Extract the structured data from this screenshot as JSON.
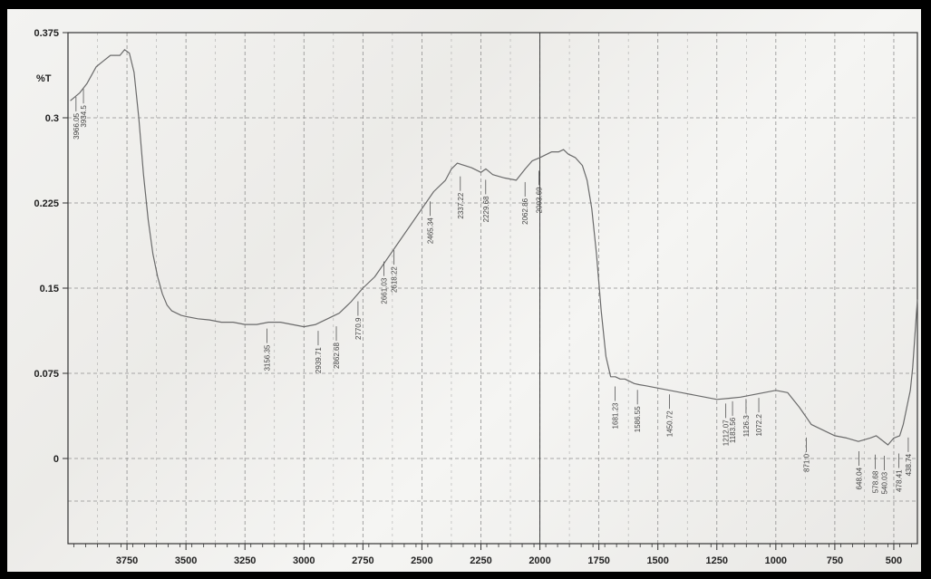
{
  "chart_data": {
    "type": "line",
    "title": "",
    "ylabel": "%T",
    "xlabel": "",
    "xlim": [
      4000,
      400
    ],
    "ylim": [
      -0.075,
      0.375
    ],
    "x_ticks": [
      3750,
      3500,
      3250,
      3000,
      2750,
      2500,
      2250,
      2000,
      1750,
      1500,
      1250,
      1000,
      750,
      500
    ],
    "y_ticks": [
      "0.375",
      "0.3",
      "0.225",
      "0.15",
      "0.075",
      "0"
    ],
    "y_tick_values": [
      0.375,
      0.3,
      0.225,
      0.15,
      0.075,
      0
    ],
    "grid": true,
    "series": [
      {
        "x": [
          3990,
          3950,
          3920,
          3880,
          3850,
          3820,
          3800,
          3780,
          3760,
          3740,
          3720,
          3700,
          3680,
          3660,
          3640,
          3620,
          3600,
          3580,
          3560,
          3540,
          3520,
          3500,
          3450,
          3400,
          3350,
          3300,
          3250,
          3200,
          3150,
          3100,
          3050,
          3000,
          2950,
          2900,
          2850,
          2800,
          2750,
          2700,
          2650,
          2600,
          2550,
          2500,
          2450,
          2400,
          2375,
          2350,
          2320,
          2290,
          2250,
          2229,
          2200,
          2150,
          2100,
          2062,
          2033,
          2000,
          1950,
          1920,
          1900,
          1880,
          1850,
          1820,
          1800,
          1780,
          1760,
          1740,
          1720,
          1700,
          1680,
          1660,
          1640,
          1620,
          1600,
          1580,
          1550,
          1500,
          1450,
          1400,
          1350,
          1300,
          1250,
          1200,
          1150,
          1100,
          1050,
          1000,
          950,
          900,
          850,
          800,
          750,
          700,
          650,
          600,
          575,
          550,
          525,
          500,
          475,
          460,
          450,
          440,
          430,
          420,
          410,
          400
        ],
        "y": [
          0.315,
          0.322,
          0.33,
          0.345,
          0.35,
          0.355,
          0.355,
          0.355,
          0.36,
          0.357,
          0.34,
          0.3,
          0.25,
          0.21,
          0.18,
          0.16,
          0.145,
          0.135,
          0.13,
          0.128,
          0.126,
          0.125,
          0.123,
          0.122,
          0.12,
          0.12,
          0.118,
          0.118,
          0.12,
          0.12,
          0.118,
          0.116,
          0.118,
          0.123,
          0.128,
          0.138,
          0.15,
          0.16,
          0.175,
          0.19,
          0.205,
          0.22,
          0.235,
          0.245,
          0.255,
          0.26,
          0.258,
          0.256,
          0.252,
          0.255,
          0.25,
          0.247,
          0.245,
          0.255,
          0.262,
          0.265,
          0.27,
          0.27,
          0.272,
          0.268,
          0.265,
          0.258,
          0.245,
          0.22,
          0.18,
          0.13,
          0.09,
          0.072,
          0.072,
          0.07,
          0.07,
          0.068,
          0.066,
          0.065,
          0.064,
          0.062,
          0.06,
          0.058,
          0.056,
          0.054,
          0.052,
          0.053,
          0.054,
          0.056,
          0.058,
          0.06,
          0.058,
          0.045,
          0.03,
          0.025,
          0.02,
          0.018,
          0.015,
          0.018,
          0.02,
          0.016,
          0.012,
          0.018,
          0.02,
          0.03,
          0.04,
          0.05,
          0.06,
          0.08,
          0.11,
          0.14
        ]
      }
    ],
    "peak_labels": [
      {
        "x": 3966.05,
        "y": 0.32,
        "text": "3966.05"
      },
      {
        "x": 3934.5,
        "y": 0.327,
        "text": "3934.5"
      },
      {
        "x": 3156.35,
        "y": 0.116,
        "text": "3156.35"
      },
      {
        "x": 2939.71,
        "y": 0.114,
        "text": "2939.71"
      },
      {
        "x": 2862.68,
        "y": 0.118,
        "text": "2862.68"
      },
      {
        "x": 2770.9,
        "y": 0.14,
        "text": "2770.9"
      },
      {
        "x": 2661.03,
        "y": 0.175,
        "text": "2661.03"
      },
      {
        "x": 2618.22,
        "y": 0.185,
        "text": "2618.22"
      },
      {
        "x": 2465.34,
        "y": 0.228,
        "text": "2465.34"
      },
      {
        "x": 2337.22,
        "y": 0.25,
        "text": "2337.22"
      },
      {
        "x": 2229.68,
        "y": 0.247,
        "text": "2229.68"
      },
      {
        "x": 2062.86,
        "y": 0.245,
        "text": "2062.86"
      },
      {
        "x": 2003.69,
        "y": 0.255,
        "text": "2003.69"
      },
      {
        "x": 1681.23,
        "y": 0.065,
        "text": "1681.23"
      },
      {
        "x": 1586.55,
        "y": 0.062,
        "text": "1586.55"
      },
      {
        "x": 1450.72,
        "y": 0.058,
        "text": "1450.72"
      },
      {
        "x": 1212.07,
        "y": 0.05,
        "text": "1212.07"
      },
      {
        "x": 1183.56,
        "y": 0.052,
        "text": "1183.56"
      },
      {
        "x": 1126.3,
        "y": 0.054,
        "text": "1126.3"
      },
      {
        "x": 1072.2,
        "y": 0.055,
        "text": "1072.2"
      },
      {
        "x": 871.0,
        "y": 0.02,
        "text": "871.0"
      },
      {
        "x": 648.04,
        "y": 0.008,
        "text": "648.04"
      },
      {
        "x": 578.68,
        "y": 0.005,
        "text": "578.68"
      },
      {
        "x": 540.03,
        "y": 0.004,
        "text": "540.03"
      },
      {
        "x": 478.41,
        "y": 0.006,
        "text": "478.41"
      },
      {
        "x": 438.74,
        "y": 0.02,
        "text": "438.74"
      }
    ],
    "colors": {
      "line": "#6a6a6a",
      "grid": "#8f8f8f",
      "axis": "#333333",
      "border": "#000000"
    }
  }
}
